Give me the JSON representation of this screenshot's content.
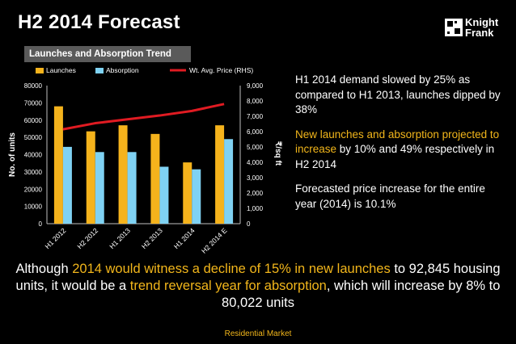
{
  "header": {
    "title": "H2 2014 Forecast",
    "logo": {
      "line1": "Knight",
      "line2": "Frank"
    }
  },
  "chart_box_title": "Launches and Absorption Trend",
  "chart_data": {
    "type": "bar",
    "categories": [
      "H1 2012",
      "H2 2012",
      "H1 2013",
      "H2 2013",
      "H1 2014",
      "H2 2014 E"
    ],
    "series": [
      {
        "name": "Launches",
        "type": "bar",
        "axis": "left",
        "color": "#f5b31c",
        "values": [
          68000,
          53500,
          57000,
          52000,
          35500,
          57000
        ]
      },
      {
        "name": "Absorption",
        "type": "bar",
        "axis": "left",
        "color": "#7fd2f3",
        "values": [
          44500,
          41500,
          41500,
          33000,
          31500,
          49000
        ]
      },
      {
        "name": "Wt. Avg. Price (RHS)",
        "type": "line",
        "axis": "right",
        "color": "#e01b22",
        "values": [
          6150,
          6550,
          6800,
          7050,
          7350,
          7800
        ]
      }
    ],
    "ylabel": "No. of units",
    "y2label": "₹/sq ft",
    "ylim": [
      0,
      80000
    ],
    "y2lim": [
      0,
      9000
    ],
    "yticks": [
      "0",
      "10000",
      "20000",
      "30000",
      "40000",
      "50000",
      "60000",
      "70000",
      "80000"
    ],
    "y2ticks": [
      "0",
      "1,000",
      "2,000",
      "3,000",
      "4,000",
      "5,000",
      "6,000",
      "7,000",
      "8,000",
      "9,000"
    ],
    "legend": "top"
  },
  "bullets": {
    "b1": "H1 2014 demand slowed by 25% as compared to H1 2013, launches dipped by 38%",
    "b2_highlight": "New launches and absorption projected to increase",
    "b2_rest": " by 10% and 49% respectively in H2 2014",
    "b3": "Forecasted price increase for the entire year (2014) is 10.1%"
  },
  "bottom": {
    "p1": "Although ",
    "h1": "2014 would witness a decline of 15% in new launches",
    "p2": " to 92,845 housing units, it would be a ",
    "h2": "trend reversal year for absorption",
    "p3": ", which will increase by 8% to 80,022 units"
  },
  "footer": "Residential Market",
  "colors": {
    "highlight": "#f2b61b",
    "background": "#000000"
  }
}
